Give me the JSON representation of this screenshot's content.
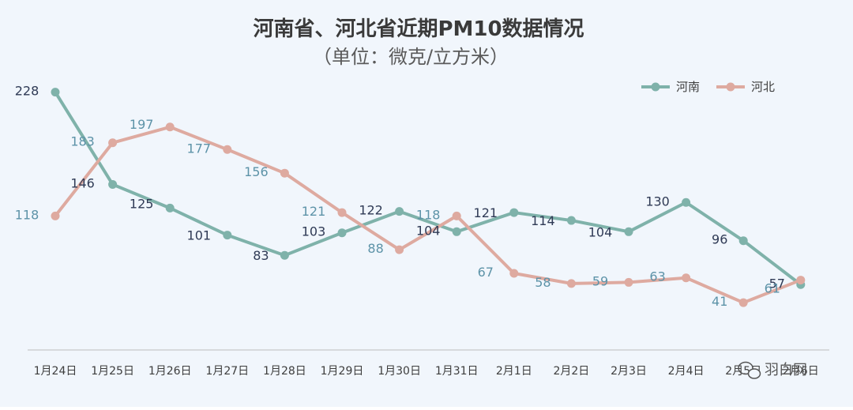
{
  "chart_data": {
    "type": "line",
    "title": "河南省、河北省近期PM10数据情况",
    "subtitle": "（单位：微克/立方米）",
    "categories": [
      "1月24日",
      "1月25日",
      "1月26日",
      "1月27日",
      "1月28日",
      "1月29日",
      "1月30日",
      "1月31日",
      "2月1日",
      "2月2日",
      "2月3日",
      "2月4日",
      "2月5日",
      "2月6日"
    ],
    "series": [
      {
        "name": "河南",
        "color": "#7fb2aa",
        "label_color": "#2f3a55",
        "values": [
          228,
          146,
          125,
          101,
          83,
          103,
          122,
          104,
          121,
          114,
          104,
          130,
          96,
          57
        ]
      },
      {
        "name": "河北",
        "color": "#deaaa0",
        "label_color": "#5d93a8",
        "values": [
          118,
          183,
          197,
          177,
          156,
          121,
          88,
          118,
          67,
          58,
          59,
          63,
          41,
          61
        ]
      }
    ],
    "ylim": [
      0,
      250
    ],
    "grid": false,
    "legend_position": "top-right",
    "background": "#f1f6fc"
  },
  "watermark": {
    "text": "羽白网",
    "icon": "wechat-icon"
  }
}
